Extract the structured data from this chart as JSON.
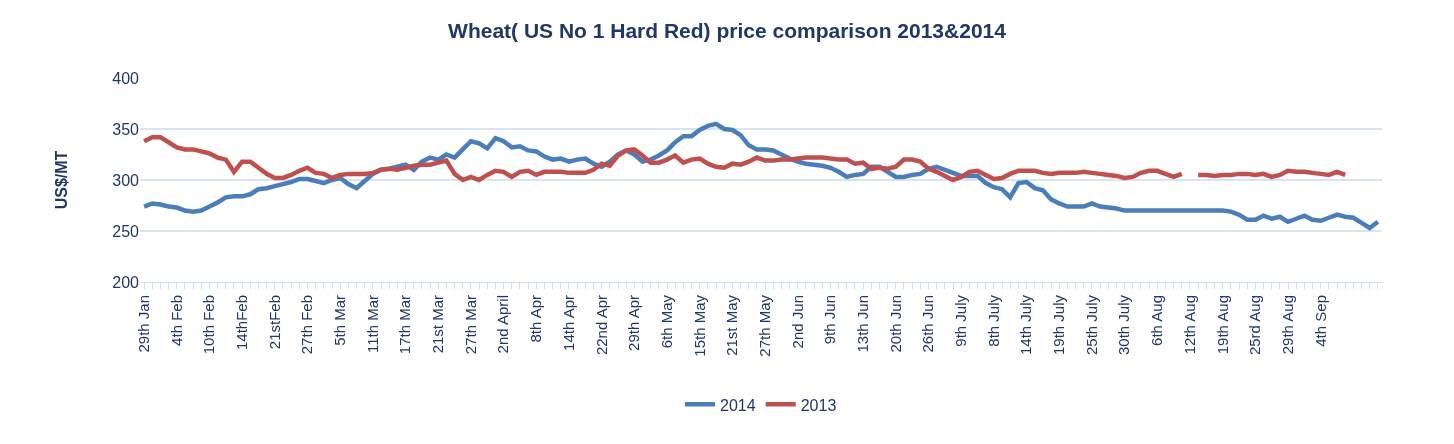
{
  "chart_data": {
    "type": "line",
    "title": "Wheat( US No 1 Hard Red) price comparison 2013&2014",
    "ylabel": "US$/MT",
    "categories": [
      "29th Jan",
      null,
      null,
      null,
      "4th Feb",
      null,
      null,
      null,
      "10th Feb",
      null,
      null,
      null,
      "14thFeb",
      null,
      null,
      null,
      "21stFeb",
      null,
      null,
      null,
      "27th Feb",
      null,
      null,
      null,
      "5th Mar",
      null,
      null,
      null,
      "11th Mar",
      null,
      null,
      null,
      "17th Mar",
      null,
      null,
      null,
      "21st Mar",
      null,
      null,
      null,
      "27th Mar",
      null,
      null,
      null,
      "2nd April",
      null,
      null,
      null,
      "8th Apr",
      null,
      null,
      null,
      "14th Apr",
      null,
      null,
      null,
      "22nd Apr",
      null,
      null,
      null,
      "29th Apr",
      null,
      null,
      null,
      "6th May",
      null,
      null,
      null,
      "15th May",
      null,
      null,
      null,
      "21st May",
      null,
      null,
      null,
      "27th May",
      null,
      null,
      null,
      "2nd Jun",
      null,
      null,
      null,
      "9th Jun",
      null,
      null,
      null,
      "13th Jun",
      null,
      null,
      null,
      "20th Jun",
      null,
      null,
      null,
      "26th Jun",
      null,
      null,
      null,
      "9th July",
      null,
      null,
      null,
      "8th July",
      null,
      null,
      null,
      "14th July",
      null,
      null,
      null,
      "19th July",
      null,
      null,
      null,
      "25th July",
      null,
      null,
      null,
      "30th July",
      null,
      null,
      null,
      "6th Aug",
      null,
      null,
      null,
      "12th Aug",
      null,
      null,
      null,
      "19th Aug",
      null,
      null,
      null,
      "25rd Aug",
      null,
      null,
      null,
      "29th Aug",
      null,
      null,
      null,
      "4th Sep",
      null,
      null,
      null,
      null,
      null,
      null,
      null
    ],
    "series": [
      {
        "name": "2014",
        "color": "#4a7ebb",
        "values": [
          274,
          277,
          276,
          274,
          273,
          270,
          269,
          270,
          274,
          278,
          283,
          284,
          284,
          286,
          291,
          292,
          294,
          296,
          298,
          301,
          301,
          299,
          297,
          300,
          302,
          296,
          292,
          299,
          306,
          310,
          311,
          313,
          315,
          310,
          318,
          322,
          320,
          325,
          322,
          330,
          338,
          336,
          331,
          341,
          338,
          332,
          333,
          329,
          328,
          323,
          320,
          321,
          318,
          320,
          321,
          316,
          313,
          318,
          325,
          329,
          325,
          318,
          320,
          324,
          329,
          337,
          343,
          343,
          349,
          353,
          355,
          350,
          349,
          344,
          334,
          330,
          330,
          329,
          325,
          321,
          318,
          316,
          315,
          314,
          312,
          308,
          303,
          305,
          306,
          313,
          313,
          308,
          303,
          303,
          305,
          306,
          311,
          313,
          310,
          307,
          304,
          304,
          304,
          297,
          293,
          291,
          283,
          297,
          298,
          292,
          290,
          281,
          277,
          274,
          274,
          274,
          277,
          274,
          273,
          272,
          270,
          270,
          270,
          270,
          270,
          270,
          270,
          270,
          270,
          270,
          270,
          270,
          270,
          269,
          266,
          261,
          261,
          265,
          262,
          264,
          259,
          262,
          265,
          261,
          260,
          263,
          266,
          264,
          263,
          258,
          253,
          259
        ]
      },
      {
        "name": "2013",
        "color": "#c0504d",
        "values": [
          338,
          342,
          342,
          337,
          332,
          330,
          330,
          328,
          326,
          322,
          320,
          308,
          318,
          318,
          312,
          306,
          302,
          302,
          305,
          309,
          312,
          307,
          306,
          302,
          305,
          306,
          306,
          306,
          307,
          310,
          311,
          310,
          312,
          314,
          315,
          315,
          317,
          319,
          306,
          300,
          303,
          300,
          305,
          309,
          308,
          303,
          308,
          309,
          305,
          308,
          308,
          308,
          307,
          307,
          307,
          310,
          316,
          314,
          324,
          329,
          330,
          324,
          317,
          317,
          320,
          324,
          317,
          320,
          321,
          316,
          313,
          312,
          316,
          315,
          318,
          322,
          319,
          319,
          320,
          320,
          321,
          322,
          322,
          322,
          321,
          320,
          320,
          316,
          317,
          311,
          312,
          311,
          313,
          320,
          320,
          318,
          311,
          308,
          304,
          300,
          303,
          308,
          309,
          305,
          301,
          302,
          306,
          309,
          309,
          309,
          307,
          306,
          307,
          307,
          307,
          308,
          307,
          306,
          305,
          304,
          302,
          303,
          307,
          309,
          309,
          306,
          303,
          306,
          null,
          305,
          305,
          304,
          305,
          305,
          306,
          306,
          305,
          306,
          303,
          305,
          309,
          308,
          308,
          307,
          306,
          305,
          308,
          305,
          null,
          null,
          null,
          null
        ]
      }
    ],
    "ylim": [
      200,
      400
    ],
    "yticks": [
      200,
      250,
      300,
      350,
      400
    ],
    "grid": "y",
    "legend": "bottom",
    "marker": "none",
    "line_style": "solid"
  }
}
